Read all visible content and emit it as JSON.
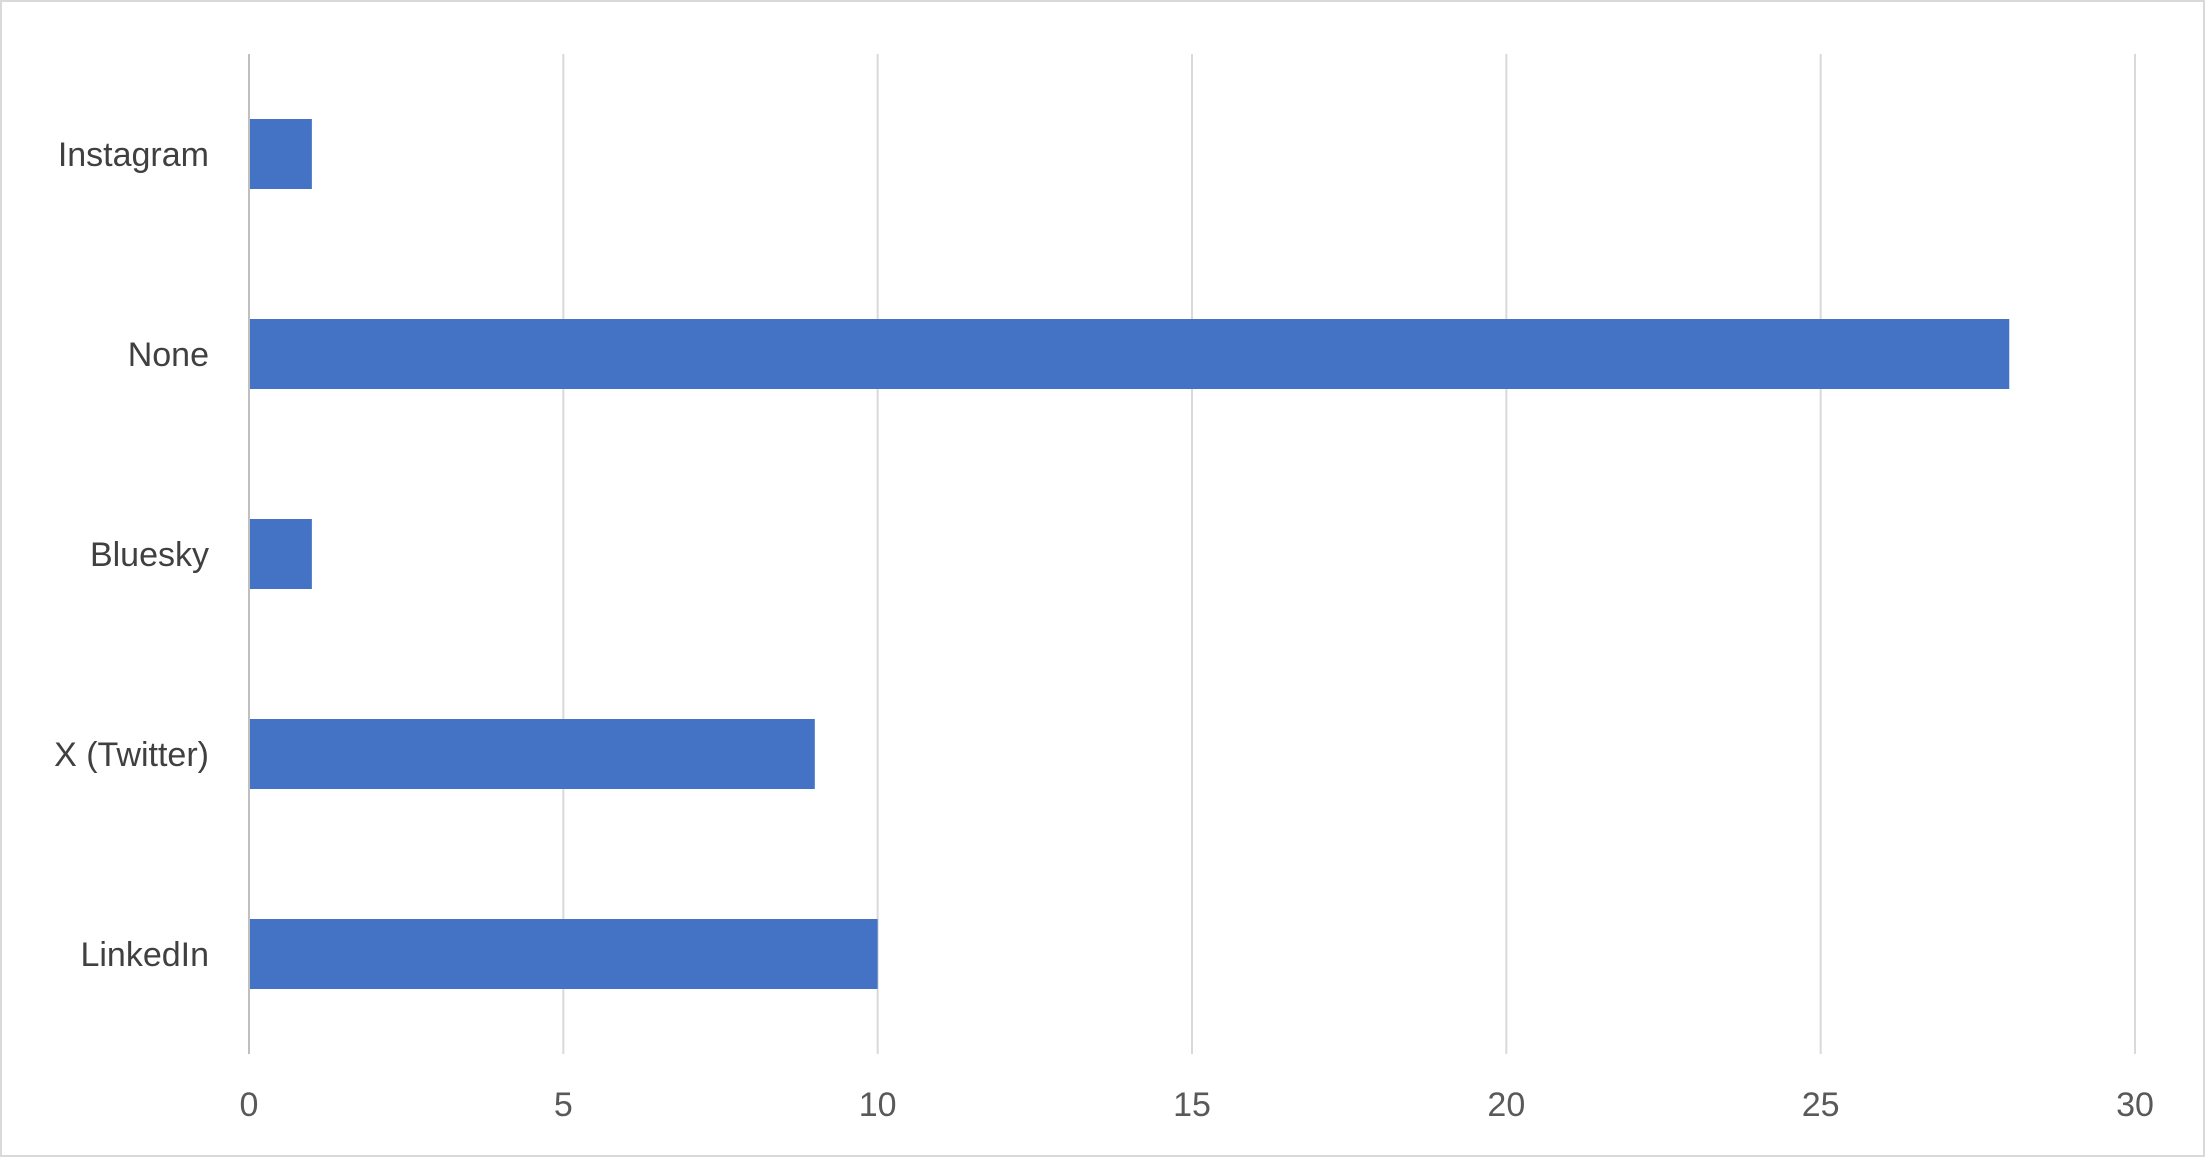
{
  "chart_data": {
    "type": "bar",
    "orientation": "horizontal",
    "title": "",
    "xlabel": "",
    "ylabel": "",
    "categories": [
      "LinkedIn",
      "X (Twitter)",
      "Bluesky",
      "None",
      "Instagram"
    ],
    "values": [
      10,
      9,
      1,
      28,
      1
    ],
    "xlim": [
      0,
      30
    ],
    "x_ticks": [
      0,
      5,
      10,
      15,
      20,
      25,
      30
    ],
    "grid": "vertical",
    "legend": "none",
    "colors": {
      "bar": "#4472C4",
      "grid": "#d9d9d9",
      "axis": "#bfbfbf",
      "frame": "#d9d9d9"
    }
  }
}
